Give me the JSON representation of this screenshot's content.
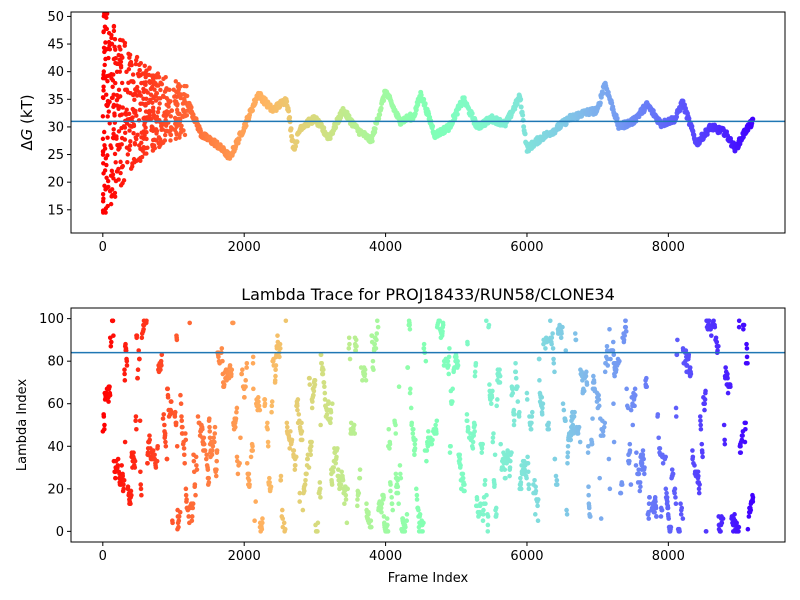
{
  "chart_data": [
    {
      "type": "scatter",
      "title": "",
      "xlabel": "",
      "ylabel_prefix": "Δ",
      "ylabel_var": "G",
      "ylabel_suffix": " (kT)",
      "xlim": [
        -450,
        9650
      ],
      "ylim": [
        10.8,
        50.8
      ],
      "xticks": [
        0,
        2000,
        4000,
        6000,
        8000
      ],
      "xtick_labels": [
        "0",
        "2000",
        "4000",
        "6000",
        "8000"
      ],
      "yticks": [
        15,
        20,
        25,
        30,
        35,
        40,
        45,
        50
      ],
      "ytick_labels": [
        "15",
        "20",
        "25",
        "30",
        "35",
        "40",
        "45",
        "50"
      ],
      "hline": 31.0,
      "hline_color": "#1f77b4",
      "colormap": "rainbow",
      "colormap_direction": "red at frame 0 to violet at last frame",
      "x_range": [
        0,
        9200
      ],
      "grid": false,
      "legend": "none",
      "keypoints": [
        {
          "x": 1200,
          "y": 34.5
        },
        {
          "x": 1400,
          "y": 28.5
        },
        {
          "x": 1600,
          "y": 27.0
        },
        {
          "x": 1800,
          "y": 24.5
        },
        {
          "x": 2000,
          "y": 30.0
        },
        {
          "x": 2200,
          "y": 36.0
        },
        {
          "x": 2400,
          "y": 33.0
        },
        {
          "x": 2600,
          "y": 35.0
        },
        {
          "x": 2700,
          "y": 26.0
        },
        {
          "x": 2800,
          "y": 30.0
        },
        {
          "x": 3000,
          "y": 31.5
        },
        {
          "x": 3200,
          "y": 28.0
        },
        {
          "x": 3400,
          "y": 33.0
        },
        {
          "x": 3600,
          "y": 29.5
        },
        {
          "x": 3800,
          "y": 27.5
        },
        {
          "x": 4000,
          "y": 36.5
        },
        {
          "x": 4200,
          "y": 31.0
        },
        {
          "x": 4400,
          "y": 32.0
        },
        {
          "x": 4500,
          "y": 36.0
        },
        {
          "x": 4700,
          "y": 28.5
        },
        {
          "x": 4900,
          "y": 30.0
        },
        {
          "x": 5100,
          "y": 35.0
        },
        {
          "x": 5300,
          "y": 30.0
        },
        {
          "x": 5500,
          "y": 31.5
        },
        {
          "x": 5700,
          "y": 30.5
        },
        {
          "x": 5900,
          "y": 35.5
        },
        {
          "x": 6000,
          "y": 26.0
        },
        {
          "x": 6200,
          "y": 28.0
        },
        {
          "x": 6400,
          "y": 29.5
        },
        {
          "x": 6600,
          "y": 31.5
        },
        {
          "x": 6800,
          "y": 32.5
        },
        {
          "x": 7000,
          "y": 33.0
        },
        {
          "x": 7100,
          "y": 38.0
        },
        {
          "x": 7300,
          "y": 30.0
        },
        {
          "x": 7500,
          "y": 31.0
        },
        {
          "x": 7700,
          "y": 34.0
        },
        {
          "x": 7900,
          "y": 30.5
        },
        {
          "x": 8100,
          "y": 31.5
        },
        {
          "x": 8200,
          "y": 34.5
        },
        {
          "x": 8400,
          "y": 27.0
        },
        {
          "x": 8600,
          "y": 30.0
        },
        {
          "x": 8800,
          "y": 29.0
        },
        {
          "x": 8950,
          "y": 26.0
        },
        {
          "x": 9100,
          "y": 29.5
        },
        {
          "x": 9200,
          "y": 31.0
        }
      ],
      "early_scatter_range": {
        "x": [
          0,
          1200
        ],
        "y": [
          14.5,
          50.5
        ]
      }
    },
    {
      "type": "scatter",
      "title": "Lambda Trace for PROJ18433/RUN58/CLONE34",
      "xlabel": "Frame Index",
      "ylabel": "Lambda Index",
      "xlim": [
        -450,
        9650
      ],
      "ylim": [
        -5,
        105
      ],
      "xticks": [
        0,
        2000,
        4000,
        6000,
        8000
      ],
      "xtick_labels": [
        "0",
        "2000",
        "4000",
        "6000",
        "8000"
      ],
      "yticks": [
        0,
        20,
        40,
        60,
        80,
        100
      ],
      "ytick_labels": [
        "0",
        "20",
        "40",
        "60",
        "80",
        "100"
      ],
      "hline": 84,
      "hline_color": "#1f77b4",
      "colormap": "rainbow",
      "colormap_direction": "red at frame 0 to violet at last frame",
      "x_range": [
        0,
        9200
      ],
      "y_range": [
        0,
        99
      ],
      "grid": false,
      "legend": "none"
    }
  ]
}
